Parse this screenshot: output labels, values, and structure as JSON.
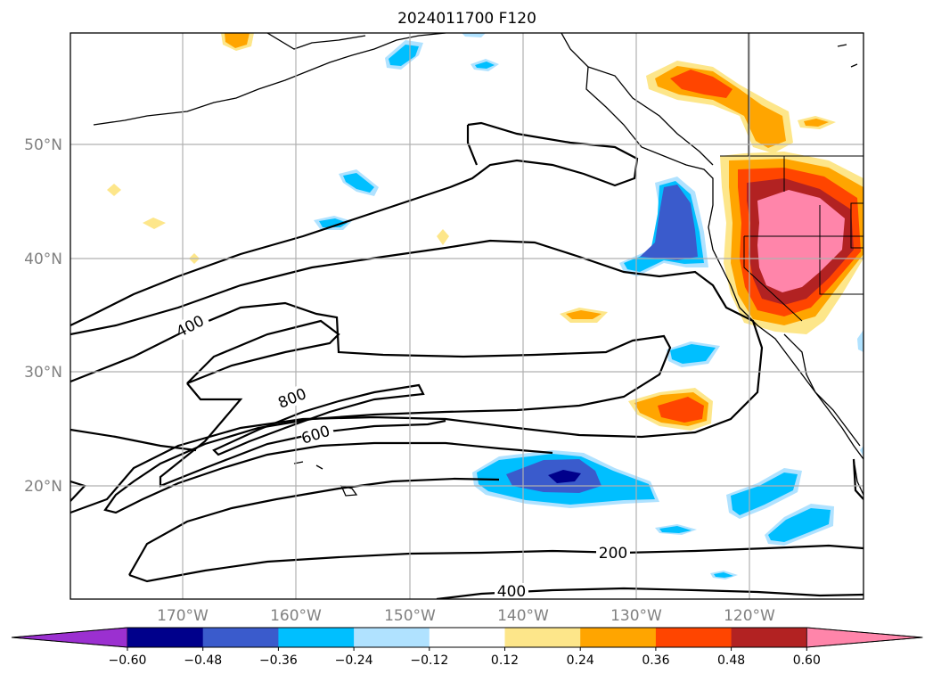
{
  "title": "2024011700 F120",
  "lat_labels": [
    "50°N",
    "40°N",
    "30°N",
    "20°N"
  ],
  "lon_labels": [
    "170°W",
    "160°W",
    "150°W",
    "140°W",
    "130°W",
    "120°W"
  ],
  "contour_labels": [
    "400",
    "800",
    "600",
    "200",
    "400"
  ],
  "colorbar": {
    "ticks": [
      "−0.60",
      "−0.48",
      "−0.36",
      "−0.24",
      "−0.12",
      "0.12",
      "0.24",
      "0.36",
      "0.48",
      "0.60"
    ],
    "colors": [
      "#9b30d0",
      "#00008b",
      "#3a5bcc",
      "#00bfff",
      "#b0e2ff",
      "#ffffff",
      "#fde68a",
      "#ffa500",
      "#ff4500",
      "#b22222",
      "#ff85aa"
    ]
  }
}
